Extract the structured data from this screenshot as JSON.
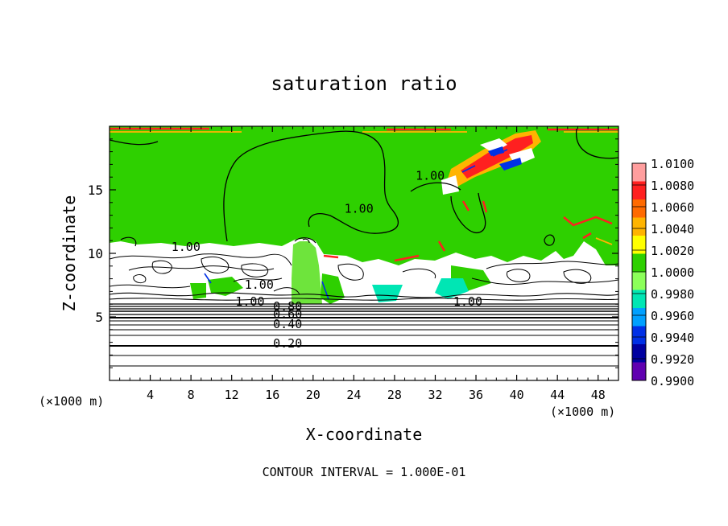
{
  "chart_data": {
    "type": "heatmap",
    "title": "saturation ratio",
    "xlabel": "X-coordinate",
    "ylabel": "Z-coordinate",
    "x_unit_left": "(×1000 m)",
    "x_unit_right": "(×1000 m)",
    "xlim": [
      0,
      50
    ],
    "ylim": [
      0,
      20
    ],
    "x_ticks": [
      4,
      8,
      12,
      16,
      20,
      24,
      28,
      32,
      36,
      40,
      44,
      48
    ],
    "y_ticks": [
      5,
      10,
      15
    ],
    "colorbar": {
      "levels": [
        "1.0100",
        "1.0080",
        "1.0060",
        "1.0040",
        "1.0020",
        "1.0000",
        "0.9980",
        "0.9960",
        "0.9940",
        "0.9920",
        "0.9900"
      ],
      "colors": [
        "#ff9e9e",
        "#ff2020",
        "#ff6a00",
        "#ffb400",
        "#ffff00",
        "#2ed000",
        "#8cff5a",
        "#00e6b4",
        "#00a0ff",
        "#0030e6",
        "#0000a0",
        "#6000b0"
      ]
    },
    "contour_labels": [
      {
        "text": "1.00",
        "x": 7.5,
        "y": 10.2
      },
      {
        "text": "1.00",
        "x": 24.5,
        "y": 13.2
      },
      {
        "text": "1.00",
        "x": 31.5,
        "y": 15.8
      },
      {
        "text": "1.00",
        "x": 14.7,
        "y": 7.2
      },
      {
        "text": "1.00",
        "x": 13.8,
        "y": 5.9
      },
      {
        "text": "1.00",
        "x": 35.2,
        "y": 5.9
      },
      {
        "text": "0.80",
        "x": 17.5,
        "y": 5.5
      },
      {
        "text": "0.60",
        "x": 17.5,
        "y": 4.9
      },
      {
        "text": "0.40",
        "x": 17.5,
        "y": 4.1
      },
      {
        "text": "0.20",
        "x": 17.5,
        "y": 2.6
      }
    ],
    "footer": "CONTOUR INTERVAL = 1.000E-01"
  }
}
